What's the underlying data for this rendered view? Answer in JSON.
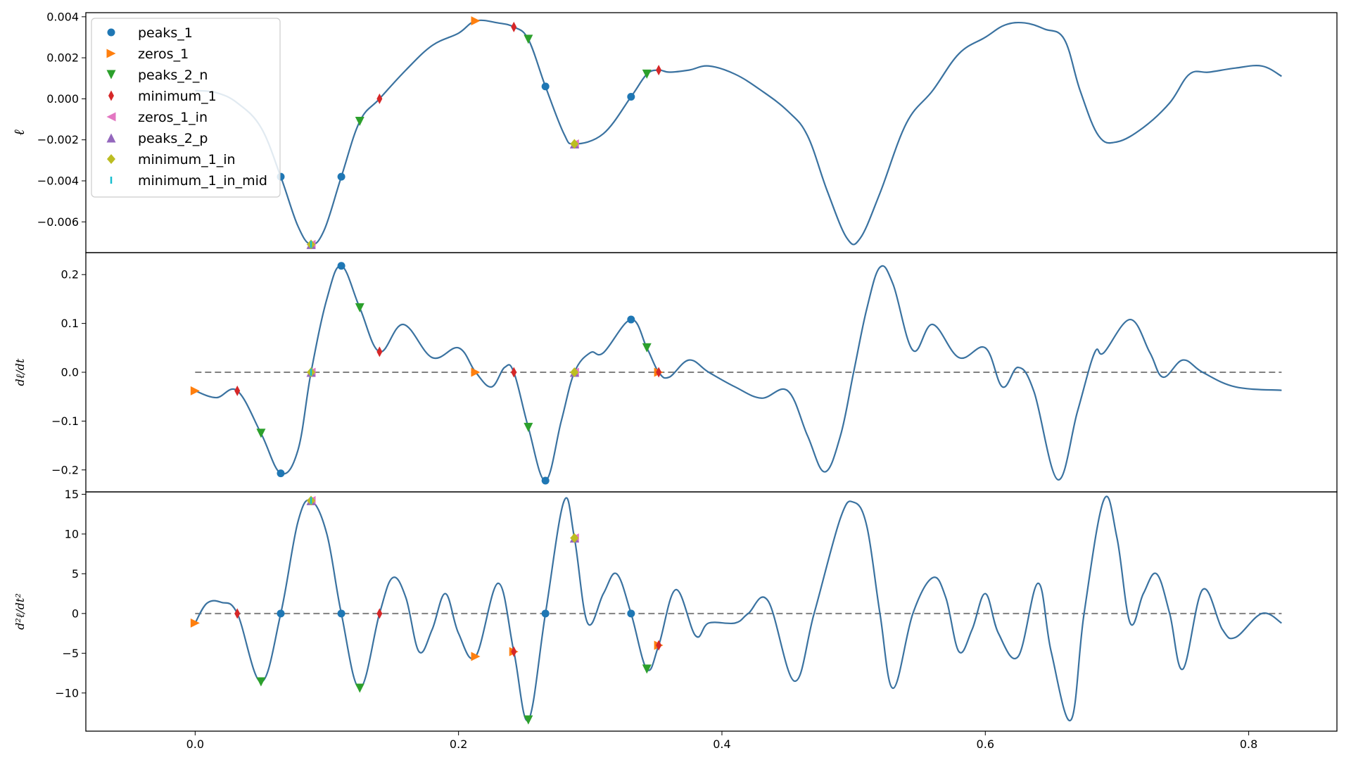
{
  "chart_data": {
    "type": "line",
    "x_range": [
      0.0,
      0.825
    ],
    "xlim": [
      -0.1,
      2.08
    ],
    "shared_x_ticks": [
      0.0,
      0.2,
      0.4,
      0.6,
      0.8
    ],
    "x_tick_labels": [
      "0.0",
      "0.2",
      "0.4",
      "0.6",
      "0.8"
    ],
    "legend": {
      "placement": "upper-left of top panel",
      "entries": [
        {
          "name": "peaks_1",
          "marker": "circle",
          "color": "#1f77b4"
        },
        {
          "name": "zeros_1",
          "marker": "triangle-right",
          "color": "#ff7f0e"
        },
        {
          "name": "peaks_2_n",
          "marker": "triangle-down",
          "color": "#2ca02c"
        },
        {
          "name": "minimum_1",
          "marker": "thin-diamond",
          "color": "#d62728"
        },
        {
          "name": "zeros_1_in",
          "marker": "triangle-left",
          "color": "#e377c2"
        },
        {
          "name": "peaks_2_p",
          "marker": "triangle-up",
          "color": "#9467bd"
        },
        {
          "name": "minimum_1_in",
          "marker": "diamond",
          "color": "#bcbd22"
        },
        {
          "name": "minimum_1_in_mid",
          "marker": "vline",
          "color": "#17becf"
        }
      ]
    },
    "panels": [
      {
        "id": "ell",
        "ylabel": "ℓ",
        "ylim": [
          -0.0075,
          0.0042
        ],
        "y_ticks": [
          0.004,
          0.002,
          0.0,
          -0.002,
          -0.004,
          -0.006
        ],
        "y_tick_labels": [
          "0.004",
          "0.002",
          "0.000",
          "−0.002",
          "−0.004",
          "−0.006"
        ],
        "zero_line": false,
        "line": [
          [
            0.0,
            0.0004
          ],
          [
            0.016,
            0.0003
          ],
          [
            0.032,
            -0.0002
          ],
          [
            0.05,
            -0.0014
          ],
          [
            0.065,
            -0.0038
          ],
          [
            0.078,
            -0.0062
          ],
          [
            0.088,
            -0.0071
          ],
          [
            0.098,
            -0.0064
          ],
          [
            0.111,
            -0.0038
          ],
          [
            0.125,
            -0.0011
          ],
          [
            0.14,
            0.0
          ],
          [
            0.16,
            0.0014
          ],
          [
            0.18,
            0.0026
          ],
          [
            0.2,
            0.0032
          ],
          [
            0.213,
            0.0038
          ],
          [
            0.23,
            0.0037
          ],
          [
            0.242,
            0.0035
          ],
          [
            0.253,
            0.0029
          ],
          [
            0.266,
            0.0006
          ],
          [
            0.28,
            -0.0017
          ],
          [
            0.288,
            -0.0022
          ],
          [
            0.31,
            -0.0017
          ],
          [
            0.331,
            0.0001
          ],
          [
            0.343,
            0.0012
          ],
          [
            0.352,
            0.0014
          ],
          [
            0.36,
            0.0013
          ],
          [
            0.375,
            0.0014
          ],
          [
            0.39,
            0.0016
          ],
          [
            0.41,
            0.0012
          ],
          [
            0.43,
            0.0004
          ],
          [
            0.45,
            -0.0006
          ],
          [
            0.465,
            -0.0018
          ],
          [
            0.48,
            -0.0045
          ],
          [
            0.495,
            -0.0068
          ],
          [
            0.505,
            -0.0068
          ],
          [
            0.52,
            -0.0046
          ],
          [
            0.54,
            -0.0012
          ],
          [
            0.56,
            0.0004
          ],
          [
            0.58,
            0.0022
          ],
          [
            0.6,
            0.003
          ],
          [
            0.615,
            0.0036
          ],
          [
            0.63,
            0.0037
          ],
          [
            0.645,
            0.0034
          ],
          [
            0.66,
            0.0029
          ],
          [
            0.672,
            0.0004
          ],
          [
            0.686,
            -0.0018
          ],
          [
            0.7,
            -0.0021
          ],
          [
            0.72,
            -0.0014
          ],
          [
            0.74,
            -0.0002
          ],
          [
            0.755,
            0.0012
          ],
          [
            0.77,
            0.0013
          ],
          [
            0.79,
            0.0015
          ],
          [
            0.81,
            0.0016
          ],
          [
            0.825,
            0.0011
          ]
        ],
        "markers": {
          "peaks_1": [
            [
              0.065,
              -0.0038
            ],
            [
              0.111,
              -0.0038
            ],
            [
              0.266,
              0.0006
            ],
            [
              0.331,
              0.0001
            ]
          ],
          "zeros_1": [
            [
              0.213,
              0.0038
            ]
          ],
          "peaks_2_n": [
            [
              0.125,
              -0.0011
            ],
            [
              0.253,
              0.0029
            ],
            [
              0.343,
              0.0012
            ]
          ],
          "minimum_1": [
            [
              0.14,
              0.0
            ],
            [
              0.242,
              0.0035
            ],
            [
              0.352,
              0.0014
            ]
          ],
          "zeros_1_in": [
            [
              0.288,
              -0.0022
            ],
            [
              0.088,
              -0.0071
            ]
          ],
          "peaks_2_p": [
            [
              0.288,
              -0.0022
            ],
            [
              0.088,
              -0.0071
            ]
          ],
          "minimum_1_in": [
            [
              0.288,
              -0.0022
            ],
            [
              0.088,
              -0.0071
            ]
          ],
          "minimum_1_in_mid": [
            [
              0.088,
              -0.0071
            ]
          ]
        }
      },
      {
        "id": "dell",
        "ylabel": "dℓ/dt",
        "ylim": [
          -0.245,
          0.245
        ],
        "y_ticks": [
          0.2,
          0.1,
          0.0,
          -0.1,
          -0.2
        ],
        "y_tick_labels": [
          "0.2",
          "0.1",
          "0.0",
          "−0.1",
          "−0.2"
        ],
        "zero_line": true,
        "line": [
          [
            0.0,
            -0.038
          ],
          [
            0.016,
            -0.052
          ],
          [
            0.032,
            -0.038
          ],
          [
            0.05,
            -0.125
          ],
          [
            0.065,
            -0.207
          ],
          [
            0.078,
            -0.16
          ],
          [
            0.088,
            0.0
          ],
          [
            0.1,
            0.15
          ],
          [
            0.111,
            0.218
          ],
          [
            0.125,
            0.132
          ],
          [
            0.14,
            0.042
          ],
          [
            0.158,
            0.098
          ],
          [
            0.18,
            0.03
          ],
          [
            0.2,
            0.05
          ],
          [
            0.213,
            0.0
          ],
          [
            0.225,
            -0.03
          ],
          [
            0.235,
            0.01
          ],
          [
            0.242,
            0.0
          ],
          [
            0.253,
            -0.113
          ],
          [
            0.266,
            -0.222
          ],
          [
            0.278,
            -0.1
          ],
          [
            0.288,
            0.0
          ],
          [
            0.3,
            0.04
          ],
          [
            0.31,
            0.04
          ],
          [
            0.331,
            0.108
          ],
          [
            0.343,
            0.05
          ],
          [
            0.352,
            0.0
          ],
          [
            0.36,
            -0.01
          ],
          [
            0.375,
            0.025
          ],
          [
            0.39,
            0.0
          ],
          [
            0.41,
            -0.03
          ],
          [
            0.43,
            -0.053
          ],
          [
            0.45,
            -0.038
          ],
          [
            0.465,
            -0.13
          ],
          [
            0.478,
            -0.204
          ],
          [
            0.49,
            -0.13
          ],
          [
            0.5,
            0.0
          ],
          [
            0.51,
            0.13
          ],
          [
            0.52,
            0.215
          ],
          [
            0.53,
            0.18
          ],
          [
            0.545,
            0.045
          ],
          [
            0.56,
            0.098
          ],
          [
            0.58,
            0.03
          ],
          [
            0.6,
            0.05
          ],
          [
            0.613,
            -0.03
          ],
          [
            0.625,
            0.01
          ],
          [
            0.637,
            -0.04
          ],
          [
            0.655,
            -0.22
          ],
          [
            0.67,
            -0.08
          ],
          [
            0.683,
            0.04
          ],
          [
            0.69,
            0.04
          ],
          [
            0.71,
            0.108
          ],
          [
            0.725,
            0.04
          ],
          [
            0.735,
            -0.01
          ],
          [
            0.75,
            0.025
          ],
          [
            0.765,
            0.0
          ],
          [
            0.79,
            -0.03
          ],
          [
            0.825,
            -0.037
          ]
        ],
        "markers": {
          "peaks_1": [
            [
              0.065,
              -0.207
            ],
            [
              0.111,
              0.218
            ],
            [
              0.266,
              -0.222
            ],
            [
              0.331,
              0.108
            ]
          ],
          "zeros_1": [
            [
              0.0,
              -0.038
            ],
            [
              0.213,
              0.0
            ],
            [
              0.352,
              0.0
            ]
          ],
          "peaks_2_n": [
            [
              0.05,
              -0.125
            ],
            [
              0.125,
              0.132
            ],
            [
              0.253,
              -0.113
            ],
            [
              0.343,
              0.05
            ]
          ],
          "minimum_1": [
            [
              0.032,
              -0.038
            ],
            [
              0.14,
              0.042
            ],
            [
              0.242,
              0.0
            ],
            [
              0.352,
              0.0
            ]
          ],
          "zeros_1_in": [
            [
              0.088,
              0.0
            ],
            [
              0.288,
              0.0
            ]
          ],
          "peaks_2_p": [
            [
              0.088,
              0.0
            ],
            [
              0.288,
              0.0
            ]
          ],
          "minimum_1_in": [
            [
              0.088,
              0.0
            ],
            [
              0.288,
              0.0
            ]
          ],
          "minimum_1_in_mid": [
            [
              0.088,
              0.0
            ]
          ]
        }
      },
      {
        "id": "d2ell",
        "ylabel": "d²ℓ/dt²",
        "ylim": [
          -14.8,
          15.3
        ],
        "y_ticks": [
          15,
          10,
          5,
          0,
          -5,
          -10
        ],
        "y_tick_labels": [
          "15",
          "10",
          "5",
          "0",
          "−5",
          "−10"
        ],
        "zero_line": true,
        "line": [
          [
            0.0,
            -1.2
          ],
          [
            0.009,
            1.3
          ],
          [
            0.02,
            1.4
          ],
          [
            0.032,
            0.0
          ],
          [
            0.05,
            -8.6
          ],
          [
            0.065,
            0.0
          ],
          [
            0.078,
            11.5
          ],
          [
            0.088,
            14.2
          ],
          [
            0.1,
            10.0
          ],
          [
            0.111,
            0.0
          ],
          [
            0.125,
            -9.4
          ],
          [
            0.14,
            0.0
          ],
          [
            0.15,
            4.5
          ],
          [
            0.16,
            2.0
          ],
          [
            0.17,
            -4.8
          ],
          [
            0.18,
            -2.0
          ],
          [
            0.19,
            2.5
          ],
          [
            0.2,
            -2.5
          ],
          [
            0.213,
            -5.4
          ],
          [
            0.23,
            3.8
          ],
          [
            0.242,
            -4.8
          ],
          [
            0.253,
            -13.4
          ],
          [
            0.266,
            0.0
          ],
          [
            0.28,
            14.1
          ],
          [
            0.288,
            9.5
          ],
          [
            0.298,
            -1.2
          ],
          [
            0.31,
            2.5
          ],
          [
            0.32,
            5.0
          ],
          [
            0.331,
            0.0
          ],
          [
            0.343,
            -7.0
          ],
          [
            0.352,
            -4.0
          ],
          [
            0.365,
            3.0
          ],
          [
            0.38,
            -2.8
          ],
          [
            0.39,
            -1.2
          ],
          [
            0.41,
            -1.2
          ],
          [
            0.42,
            0.0
          ],
          [
            0.435,
            1.6
          ],
          [
            0.455,
            -8.5
          ],
          [
            0.47,
            0.0
          ],
          [
            0.49,
            12.0
          ],
          [
            0.5,
            14.0
          ],
          [
            0.51,
            11.0
          ],
          [
            0.52,
            0.0
          ],
          [
            0.53,
            -9.4
          ],
          [
            0.545,
            0.0
          ],
          [
            0.56,
            4.5
          ],
          [
            0.57,
            2.0
          ],
          [
            0.58,
            -4.8
          ],
          [
            0.59,
            -2.0
          ],
          [
            0.6,
            2.5
          ],
          [
            0.61,
            -2.5
          ],
          [
            0.625,
            -5.4
          ],
          [
            0.64,
            3.8
          ],
          [
            0.65,
            -4.8
          ],
          [
            0.665,
            -13.4
          ],
          [
            0.675,
            0.0
          ],
          [
            0.69,
            14.3
          ],
          [
            0.7,
            9.5
          ],
          [
            0.71,
            -1.2
          ],
          [
            0.72,
            2.5
          ],
          [
            0.73,
            5.0
          ],
          [
            0.74,
            0.0
          ],
          [
            0.75,
            -7.0
          ],
          [
            0.765,
            3.0
          ],
          [
            0.78,
            -2.0
          ],
          [
            0.79,
            -3.0
          ],
          [
            0.81,
            0.0
          ],
          [
            0.825,
            -1.2
          ]
        ],
        "markers": {
          "peaks_1": [
            [
              0.065,
              0.0
            ],
            [
              0.111,
              0.0
            ],
            [
              0.266,
              0.0
            ],
            [
              0.331,
              0.0
            ]
          ],
          "zeros_1": [
            [
              0.0,
              -1.2
            ],
            [
              0.213,
              -5.4
            ],
            [
              0.242,
              -4.8
            ],
            [
              0.352,
              -4.0
            ]
          ],
          "peaks_2_n": [
            [
              0.05,
              -8.6
            ],
            [
              0.125,
              -9.4
            ],
            [
              0.253,
              -13.4
            ],
            [
              0.343,
              -7.0
            ]
          ],
          "minimum_1": [
            [
              0.032,
              0.0
            ],
            [
              0.14,
              0.0
            ],
            [
              0.242,
              -4.8
            ],
            [
              0.352,
              -4.0
            ]
          ],
          "zeros_1_in": [
            [
              0.088,
              14.2
            ],
            [
              0.288,
              9.5
            ]
          ],
          "peaks_2_p": [
            [
              0.088,
              14.2
            ],
            [
              0.288,
              9.5
            ]
          ],
          "minimum_1_in": [
            [
              0.088,
              14.2
            ],
            [
              0.288,
              9.5
            ]
          ],
          "minimum_1_in_mid": [
            [
              0.088,
              14.2
            ]
          ]
        }
      }
    ],
    "colors": {
      "line": "#3a72a0",
      "zero_line": "#808080",
      "axes": "#000000"
    }
  }
}
